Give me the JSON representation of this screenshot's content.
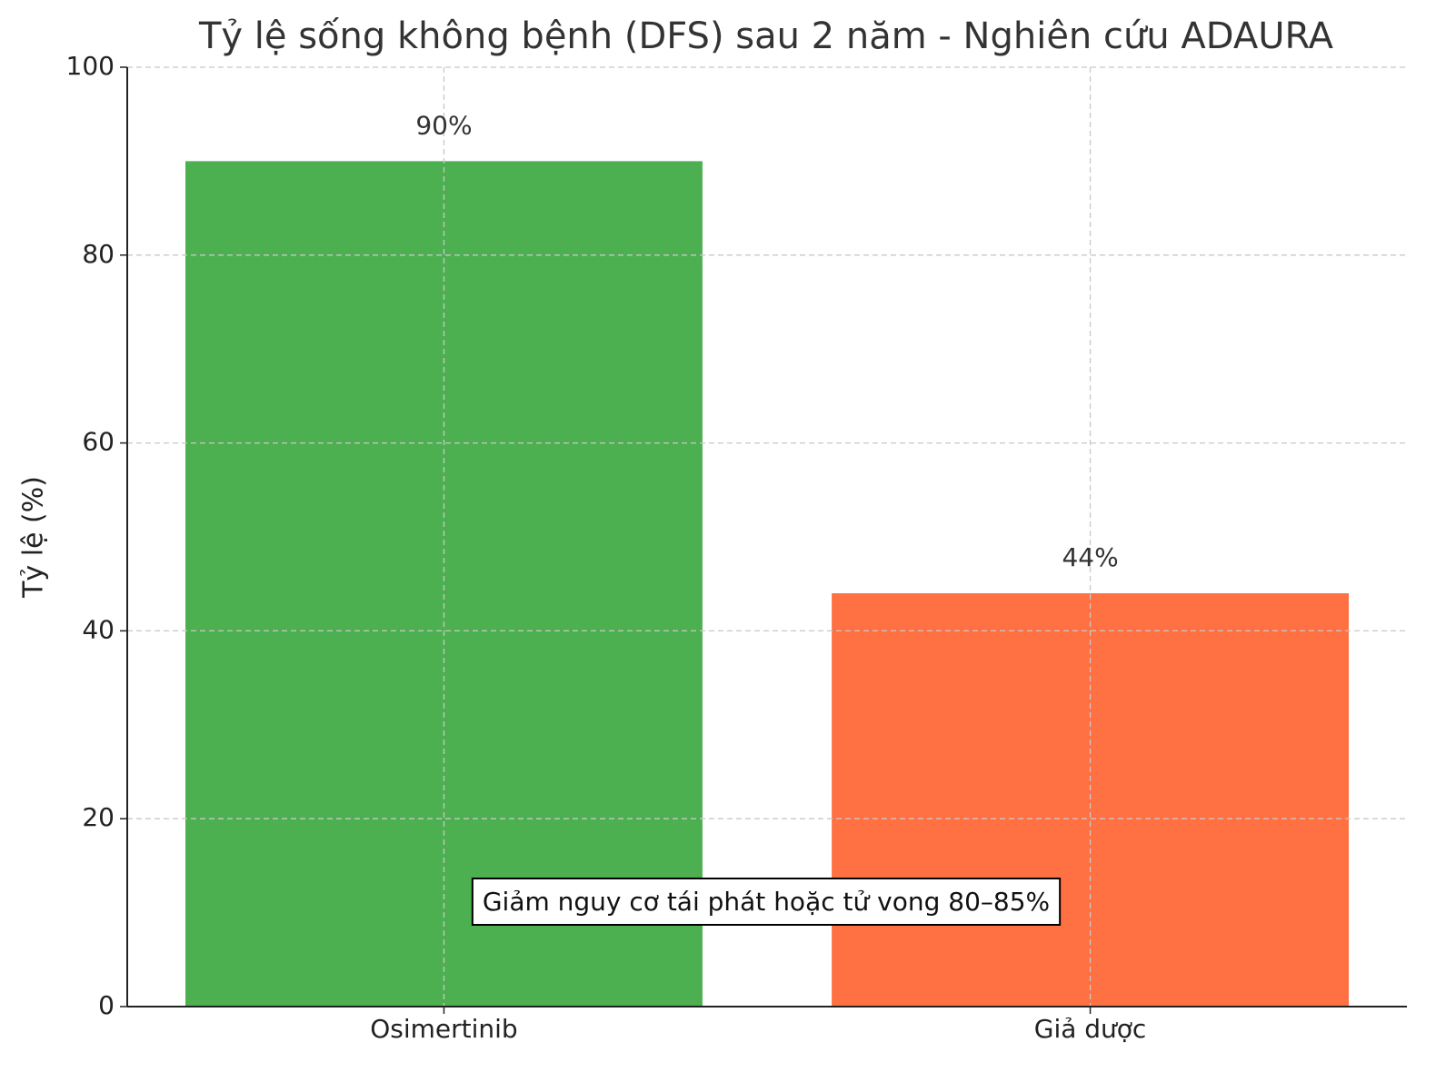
{
  "chart_data": {
    "type": "bar",
    "title": "Tỷ lệ sống không bệnh (DFS) sau 2 năm - Nghiên cứu ADAURA",
    "y_label": "Tỷ lệ (%)",
    "categories": [
      "Osimertinib",
      "Giả dược"
    ],
    "values": [
      90,
      44
    ],
    "value_labels": [
      "90%",
      "44%"
    ],
    "colors": [
      "#4caf50",
      "#ff7043"
    ],
    "ylim": [
      0,
      100
    ],
    "yticks": [
      0,
      20,
      40,
      60,
      80,
      100
    ],
    "grid": true,
    "annotation": "Giảm nguy cơ tái phát hoặc tử vong 80–85%"
  }
}
